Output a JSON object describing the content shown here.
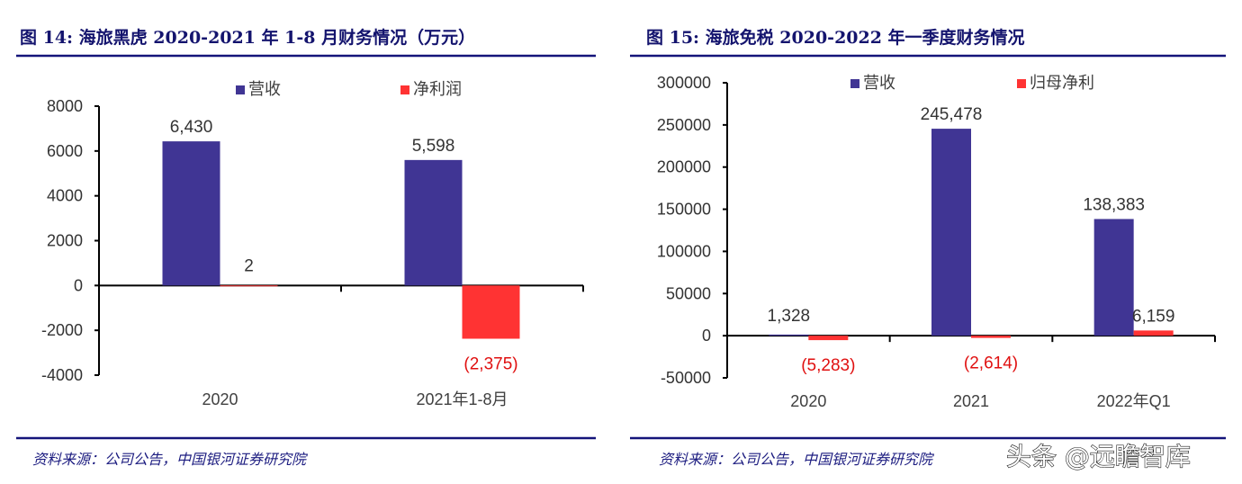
{
  "chart_data": [
    {
      "type": "bar",
      "title": "图 14:  海旅黑虎 2020-2021 年 1-8 月财务情况（万元）",
      "categories": [
        "2020",
        "2021年1-8月"
      ],
      "series": [
        {
          "name": "营收",
          "values": [
            6430,
            5598
          ],
          "labels": [
            "6,430",
            "5,598"
          ]
        },
        {
          "name": "净利润",
          "values": [
            2,
            -2375
          ],
          "labels": [
            "2",
            "(2,375)"
          ]
        }
      ],
      "ylim": [
        -4000,
        8000
      ],
      "yticks": [
        "8000",
        "6000",
        "4000",
        "2000",
        "0",
        "-2000",
        "-4000"
      ],
      "legend": "top",
      "grid": false,
      "source": "资料来源：公司公告，中国银河证券研究院"
    },
    {
      "type": "bar",
      "title": "图 15:  海旅免税 2020-2022 年一季度财务情况",
      "categories": [
        "2020",
        "2021",
        "2022年Q1"
      ],
      "series": [
        {
          "name": "营收",
          "values": [
            1328,
            245478,
            138383
          ],
          "labels": [
            "1,328",
            "245,478",
            "138,383"
          ]
        },
        {
          "name": "归母净利",
          "values": [
            -5283,
            -2614,
            6159
          ],
          "labels": [
            "(5,283)",
            "(2,614)",
            "6,159"
          ]
        }
      ],
      "ylim": [
        -50000,
        300000
      ],
      "yticks": [
        "300000",
        "250000",
        "200000",
        "150000",
        "100000",
        "50000",
        "0",
        "-50000"
      ],
      "legend": "top",
      "grid": false,
      "source": "资料来源：公司公告，中国银河证券研究院"
    }
  ],
  "colors": {
    "revenue": "#403594",
    "profit": "#ff3333",
    "title": "#14146e",
    "rule": "#14147a"
  },
  "watermark": "头条 @远瞻智库"
}
